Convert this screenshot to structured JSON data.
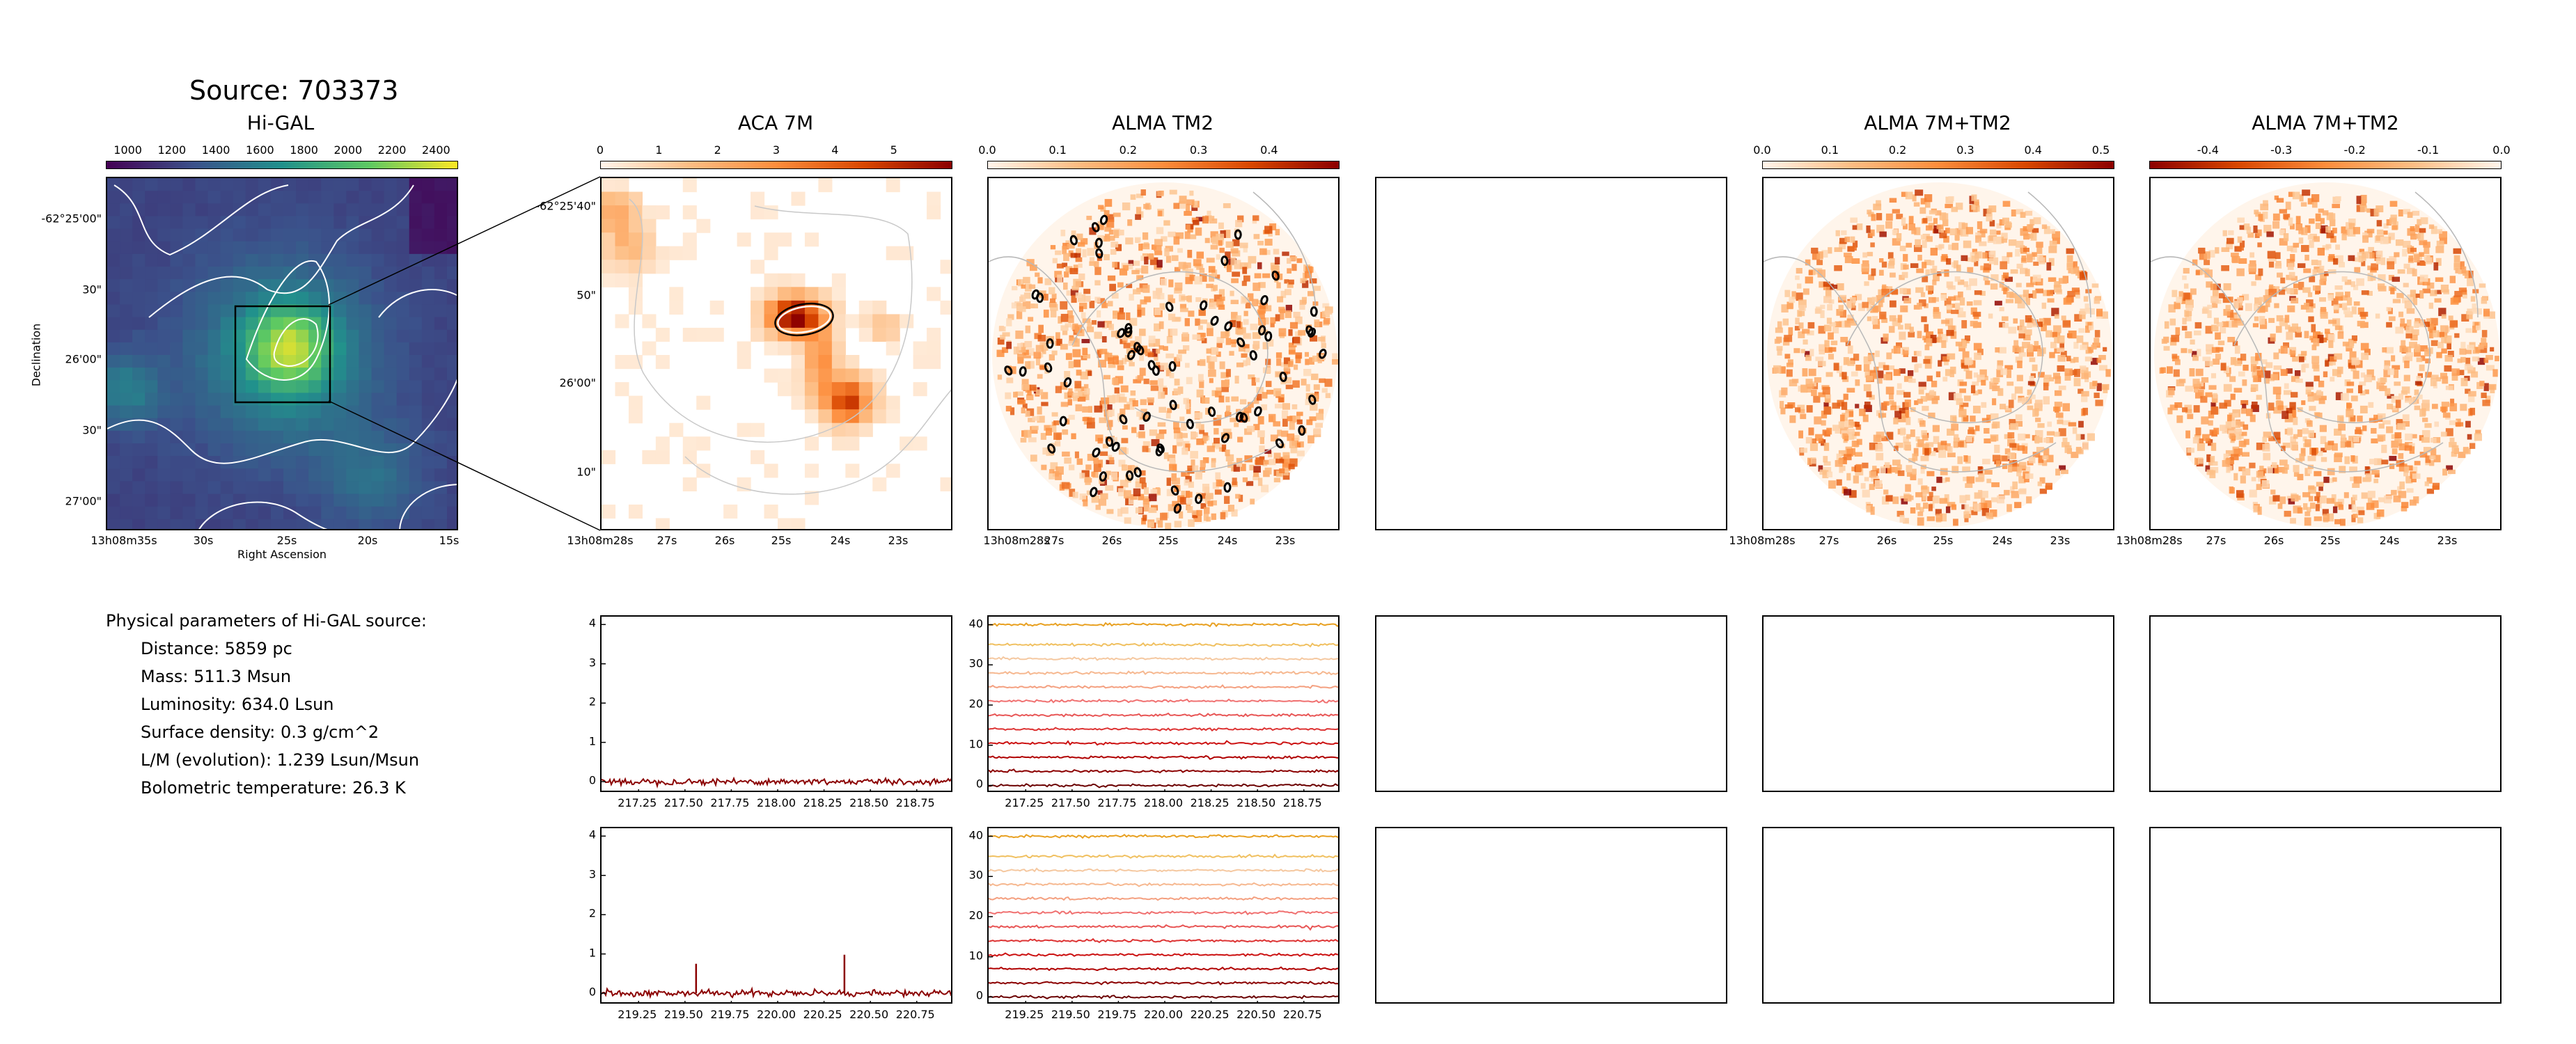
{
  "source_title": "Source: 703373",
  "params": {
    "heading": "Physical parameters of Hi-GAL source:",
    "lines": [
      "Distance: 5859 pc",
      "Mass: 511.3 Msun",
      "Luminosity: 634.0 Lsun",
      "Surface density: 0.3 g/cm^2",
      "L/M (evolution): 1.239 Lsun/Msun",
      "Bolometric temperature: 26.3 K"
    ]
  },
  "colors": {
    "viridis": [
      "#440154",
      "#3b528b",
      "#21918c",
      "#5ec962",
      "#fde725"
    ],
    "orange_red": [
      "#fff5eb",
      "#fdbe85",
      "#fd8d3c",
      "#d94701",
      "#8c0000"
    ],
    "contour": "#ffffff",
    "spectrum": "#8b0000",
    "stack_colors": [
      "#6b0000",
      "#8b0000",
      "#b00000",
      "#cc1111",
      "#dd3333",
      "#e85555",
      "#f07070",
      "#f4a080",
      "#f6b890",
      "#f5c8a0",
      "#f0c060",
      "#e8a020"
    ]
  },
  "chart_data": [
    {
      "type": "heatmap",
      "panel": "higal",
      "title": "Hi-GAL",
      "xlabel": "Right Ascension",
      "ylabel": "Declination",
      "x_ticks": [
        "13h08m35s",
        "30s",
        "25s",
        "20s",
        "15s"
      ],
      "y_ticks": [
        "-62°25'00\"",
        "30\"",
        "26'00\"",
        "30\"",
        "27'00\""
      ],
      "colorbar_ticks": [
        "1000",
        "1200",
        "1400",
        "1600",
        "1800",
        "2000",
        "2200",
        "2400"
      ],
      "colorbar_range": [
        900,
        2500
      ],
      "colormap": "viridis",
      "peak_value": 2450
    },
    {
      "type": "heatmap",
      "panel": "aca7m",
      "title": "ACA 7M",
      "x_ticks": [
        "13h08m28s",
        "27s",
        "26s",
        "25s",
        "24s",
        "23s"
      ],
      "y_ticks": [
        "-62°25'40\"",
        "50\"",
        "26'00\"",
        "10\""
      ],
      "colorbar_ticks": [
        "0",
        "1",
        "2",
        "3",
        "4",
        "5"
      ],
      "colorbar_range": [
        0,
        6
      ],
      "colormap": "OrRd"
    },
    {
      "type": "heatmap",
      "panel": "tm2",
      "title": "ALMA TM2",
      "x_ticks": [
        "13h08m28s",
        "27s",
        "26s",
        "25s",
        "24s",
        "23s"
      ],
      "colorbar_ticks": [
        "0.0",
        "0.1",
        "0.2",
        "0.3",
        "0.4"
      ],
      "colorbar_range": [
        0,
        0.5
      ],
      "colormap": "OrRd"
    },
    {
      "type": "heatmap",
      "panel": "combo_pos",
      "title": "ALMA 7M+TM2",
      "x_ticks": [
        "13h08m28s",
        "27s",
        "26s",
        "25s",
        "24s",
        "23s"
      ],
      "colorbar_ticks": [
        "0.0",
        "0.1",
        "0.2",
        "0.3",
        "0.4",
        "0.5"
      ],
      "colorbar_range": [
        0,
        0.52
      ],
      "colormap": "OrRd"
    },
    {
      "type": "heatmap",
      "panel": "combo_neg",
      "title": "ALMA 7M+TM2",
      "x_ticks": [
        "13h08m28s",
        "27s",
        "26s",
        "25s",
        "24s",
        "23s"
      ],
      "colorbar_ticks": [
        "-0.4",
        "-0.3",
        "-0.2",
        "-0.1",
        "0.0"
      ],
      "colorbar_range": [
        -0.48,
        0
      ],
      "colormap": "OrRd_r"
    },
    {
      "type": "line",
      "panel": "spec_aca_1",
      "x_ticks": [
        "217.25",
        "217.50",
        "217.75",
        "218.00",
        "218.25",
        "218.50",
        "218.75"
      ],
      "x_range": [
        217.05,
        218.95
      ],
      "y_ticks": [
        "0",
        "1",
        "2",
        "3",
        "4"
      ],
      "ylim": [
        -0.3,
        4.2
      ],
      "spikes": []
    },
    {
      "type": "line",
      "panel": "spec_tm2_1",
      "x_ticks": [
        "217.25",
        "217.50",
        "217.75",
        "218.00",
        "218.25",
        "218.50",
        "218.75"
      ],
      "x_range": [
        217.05,
        218.95
      ],
      "y_ticks": [
        "0",
        "10",
        "20",
        "30",
        "40"
      ],
      "ylim": [
        -2,
        42
      ],
      "offsets": [
        0,
        3.5,
        7,
        10.5,
        14,
        17.5,
        21,
        24.5,
        28,
        31.5,
        35,
        40
      ]
    },
    {
      "type": "line",
      "panel": "spec_aca_2",
      "x_ticks": [
        "219.25",
        "219.50",
        "219.75",
        "220.00",
        "220.25",
        "220.50",
        "220.75"
      ],
      "x_range": [
        219.05,
        220.95
      ],
      "y_ticks": [
        "0",
        "1",
        "2",
        "3",
        "4"
      ],
      "ylim": [
        -0.3,
        4.2
      ],
      "spikes": [
        [
          219.56,
          0.75
        ],
        [
          220.36,
          0.98
        ]
      ]
    },
    {
      "type": "line",
      "panel": "spec_tm2_2",
      "x_ticks": [
        "219.25",
        "219.50",
        "219.75",
        "220.00",
        "220.25",
        "220.50",
        "220.75"
      ],
      "x_range": [
        219.05,
        220.95
      ],
      "y_ticks": [
        "0",
        "10",
        "20",
        "30",
        "40"
      ],
      "ylim": [
        -2,
        42
      ],
      "offsets": [
        0,
        3.5,
        7,
        10.5,
        14,
        17.5,
        21,
        24.5,
        28,
        31.5,
        35,
        40
      ]
    }
  ]
}
